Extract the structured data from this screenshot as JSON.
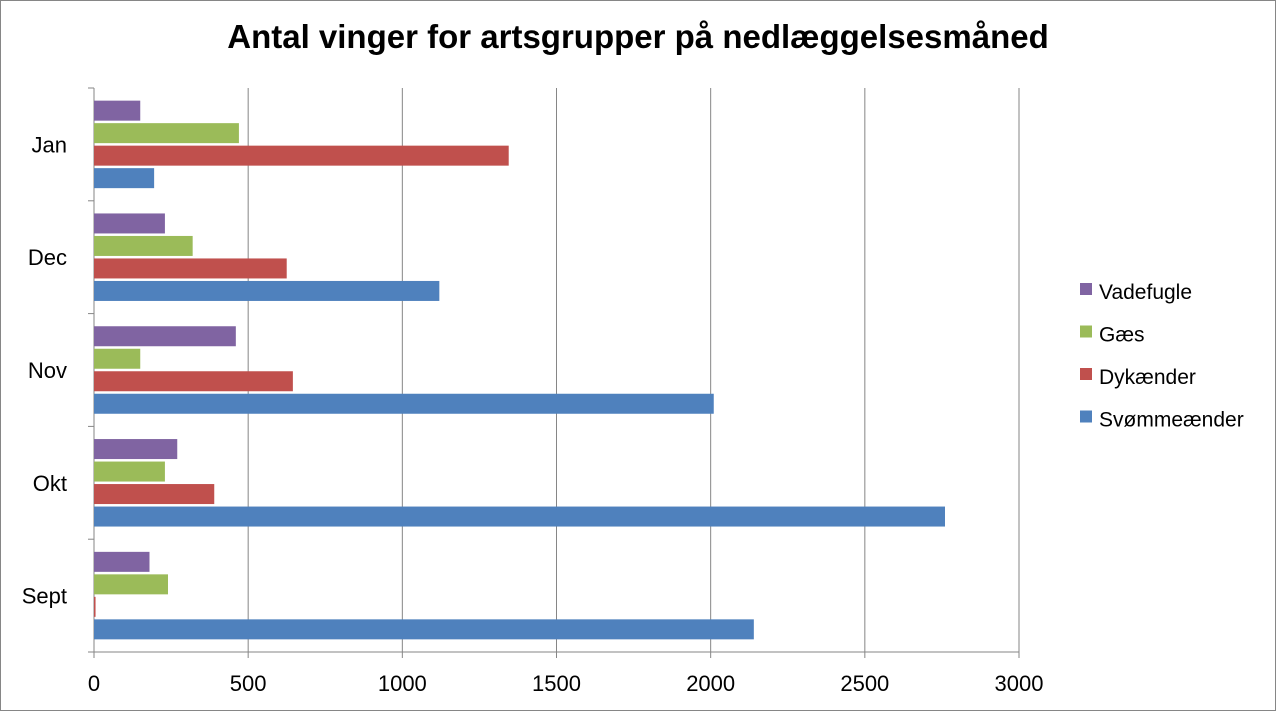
{
  "chart_data": {
    "type": "bar",
    "orientation": "horizontal",
    "title": "Antal vinger for artsgrupper på nedlæggelsesmåned",
    "categories": [
      "Sept",
      "Okt",
      "Nov",
      "Dec",
      "Jan"
    ],
    "series": [
      {
        "name": "Svømmeænder",
        "color": "#4f81bd",
        "values": [
          2140,
          2760,
          2010,
          1120,
          195
        ]
      },
      {
        "name": "Dykænder",
        "color": "#c0504d",
        "values": [
          5,
          390,
          645,
          625,
          1345
        ]
      },
      {
        "name": "Gæs",
        "color": "#9bbb59",
        "values": [
          240,
          230,
          150,
          320,
          470
        ]
      },
      {
        "name": "Vadefugle",
        "color": "#8064a2",
        "values": [
          180,
          270,
          460,
          230,
          150
        ]
      }
    ],
    "xlim": [
      0,
      3000
    ],
    "xticks": [
      "0",
      "500",
      "1000",
      "1500",
      "2000",
      "2500",
      "3000"
    ],
    "xtick_values": [
      0,
      500,
      1000,
      1500,
      2000,
      2500,
      3000
    ],
    "grid": "vertical",
    "legend_placement": "right",
    "legend_order": [
      "Vadefugle",
      "Gæs",
      "Dykænder",
      "Svømmeænder"
    ]
  }
}
